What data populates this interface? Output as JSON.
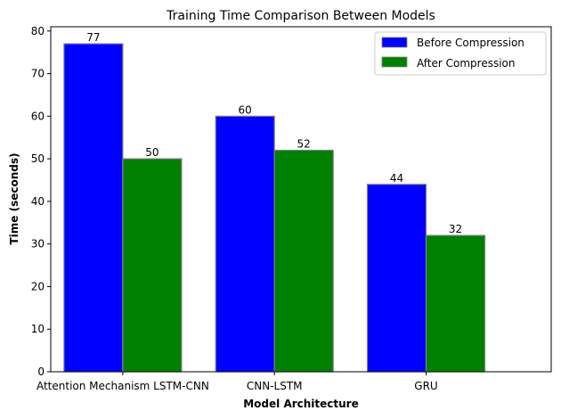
{
  "chart_data": {
    "type": "bar",
    "title": "Training Time Comparison Between Models",
    "xlabel": "Model Architecture",
    "ylabel": "Time (seconds)",
    "categories": [
      "Attention Mechanism LSTM-CNN",
      "CNN-LSTM",
      "GRU"
    ],
    "series": [
      {
        "name": "Before Compression",
        "values": [
          77,
          60,
          44
        ],
        "color": "#0000ff"
      },
      {
        "name": "After Compression",
        "values": [
          50,
          52,
          32
        ],
        "color": "#008000"
      }
    ],
    "ylim": [
      0,
      81
    ],
    "yticks": [
      0,
      10,
      20,
      30,
      40,
      50,
      60,
      70,
      80
    ],
    "grid": false,
    "legend_position": "top-right",
    "bar_edge_color": "#808080"
  }
}
